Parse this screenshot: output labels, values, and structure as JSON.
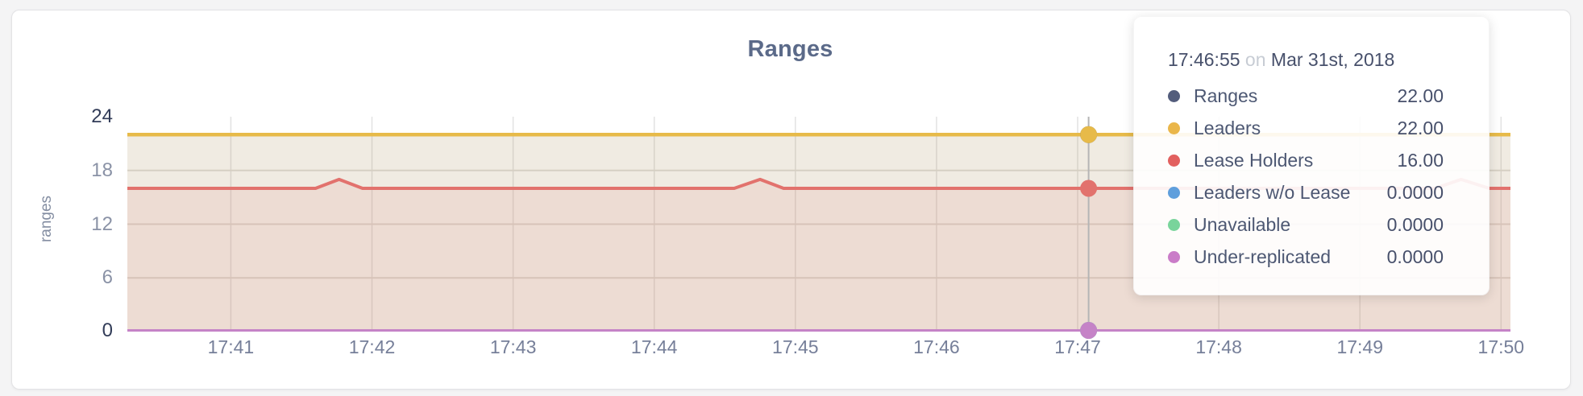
{
  "card": {
    "title": "Ranges"
  },
  "chart_data": {
    "type": "area",
    "title": "Ranges",
    "xlabel": "",
    "ylabel": "ranges",
    "ylim": [
      0,
      24
    ],
    "xlim": [
      "17:40:16",
      "17:50:04"
    ],
    "y_ticks": [
      0,
      6,
      12,
      18,
      24
    ],
    "x_ticks": [
      "17:41",
      "17:42",
      "17:43",
      "17:44",
      "17:45",
      "17:46",
      "17:47",
      "17:48",
      "17:49",
      "17:50"
    ],
    "grid": true,
    "legend_position": "tooltip",
    "series": [
      {
        "name": "Ranges",
        "color": "#535d7c",
        "fill_opacity": 0.08,
        "stroke_width": 3,
        "points": [
          [
            "17:40:16",
            22
          ],
          [
            "17:50:04",
            22
          ]
        ]
      },
      {
        "name": "Leaders",
        "color": "#e7ba49",
        "fill_opacity": 0.11,
        "stroke_width": 4.5,
        "points": [
          [
            "17:40:16",
            22
          ],
          [
            "17:50:04",
            22
          ]
        ]
      },
      {
        "name": "Lease Holders",
        "color": "#e2726d",
        "fill_opacity": 0.12,
        "stroke_width": 4,
        "points": [
          [
            "17:40:16",
            16
          ],
          [
            "17:41:36",
            16
          ],
          [
            "17:41:46",
            17
          ],
          [
            "17:41:56",
            16
          ],
          [
            "17:44:34",
            16
          ],
          [
            "17:44:45",
            17
          ],
          [
            "17:44:55",
            16
          ],
          [
            "17:49:32",
            16
          ],
          [
            "17:49:43",
            17
          ],
          [
            "17:49:55",
            16
          ],
          [
            "17:50:04",
            16
          ]
        ]
      },
      {
        "name": "Leaders w/o Lease",
        "color": "#5f9fdc",
        "fill_opacity": 0,
        "stroke_width": 2,
        "points": [
          [
            "17:40:16",
            0
          ],
          [
            "17:50:04",
            0
          ]
        ]
      },
      {
        "name": "Unavailable",
        "color": "#79d49b",
        "fill_opacity": 0,
        "stroke_width": 2,
        "points": [
          [
            "17:40:16",
            0
          ],
          [
            "17:50:04",
            0
          ]
        ]
      },
      {
        "name": "Under-replicated",
        "color": "#c583c7",
        "fill_opacity": 0,
        "stroke_width": 3,
        "points": [
          [
            "17:40:16",
            0
          ],
          [
            "17:50:04",
            0
          ]
        ]
      }
    ]
  },
  "tooltip": {
    "time": "17:46:55",
    "separator": "on",
    "date": "Mar 31st, 2018",
    "rows": [
      {
        "label": "Ranges",
        "value": "22.00",
        "color": "#535d7c"
      },
      {
        "label": "Leaders",
        "value": "22.00",
        "color": "#eab64a"
      },
      {
        "label": "Lease Holders",
        "value": "16.00",
        "color": "#e2605f"
      },
      {
        "label": "Leaders w/o Lease",
        "value": "0.0000",
        "color": "#5f9fdc"
      },
      {
        "label": "Unavailable",
        "value": "0.0000",
        "color": "#79d49b"
      },
      {
        "label": "Under-replicated",
        "value": "0.0000",
        "color": "#ca7cc8"
      }
    ]
  }
}
